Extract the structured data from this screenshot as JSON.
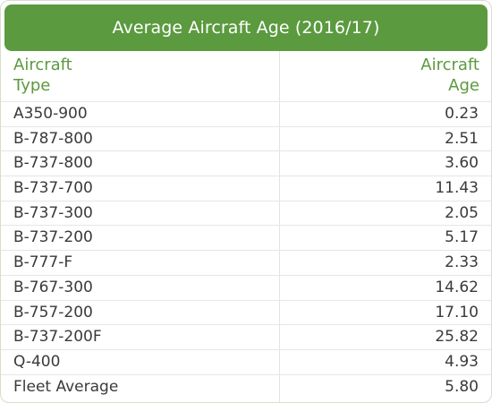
{
  "title": "Average Aircraft Age (2016/17)",
  "header": {
    "type_line1": "Aircraft",
    "type_line2": "Type",
    "age_line1": "Aircraft",
    "age_line2": "Age"
  },
  "rows": [
    {
      "type": "A350-900",
      "age": "0.23"
    },
    {
      "type": "B-787-800",
      "age": "2.51"
    },
    {
      "type": "B-737-800",
      "age": "3.60"
    },
    {
      "type": "B-737-700",
      "age": "11.43"
    },
    {
      "type": "B-737-300",
      "age": "2.05"
    },
    {
      "type": "B-737-200",
      "age": "5.17"
    },
    {
      "type": "B-777-F",
      "age": "2.33"
    },
    {
      "type": "B-767-300",
      "age": "14.62"
    },
    {
      "type": "B-757-200",
      "age": "17.10"
    },
    {
      "type": "B-737-200F",
      "age": "25.82"
    },
    {
      "type": "Q-400",
      "age": "4.93"
    },
    {
      "type": "Fleet Average",
      "age": "5.80"
    }
  ],
  "colors": {
    "accent": "#5b9a3f",
    "text": "#3a3a3a",
    "rule": "#e6e6e6"
  }
}
